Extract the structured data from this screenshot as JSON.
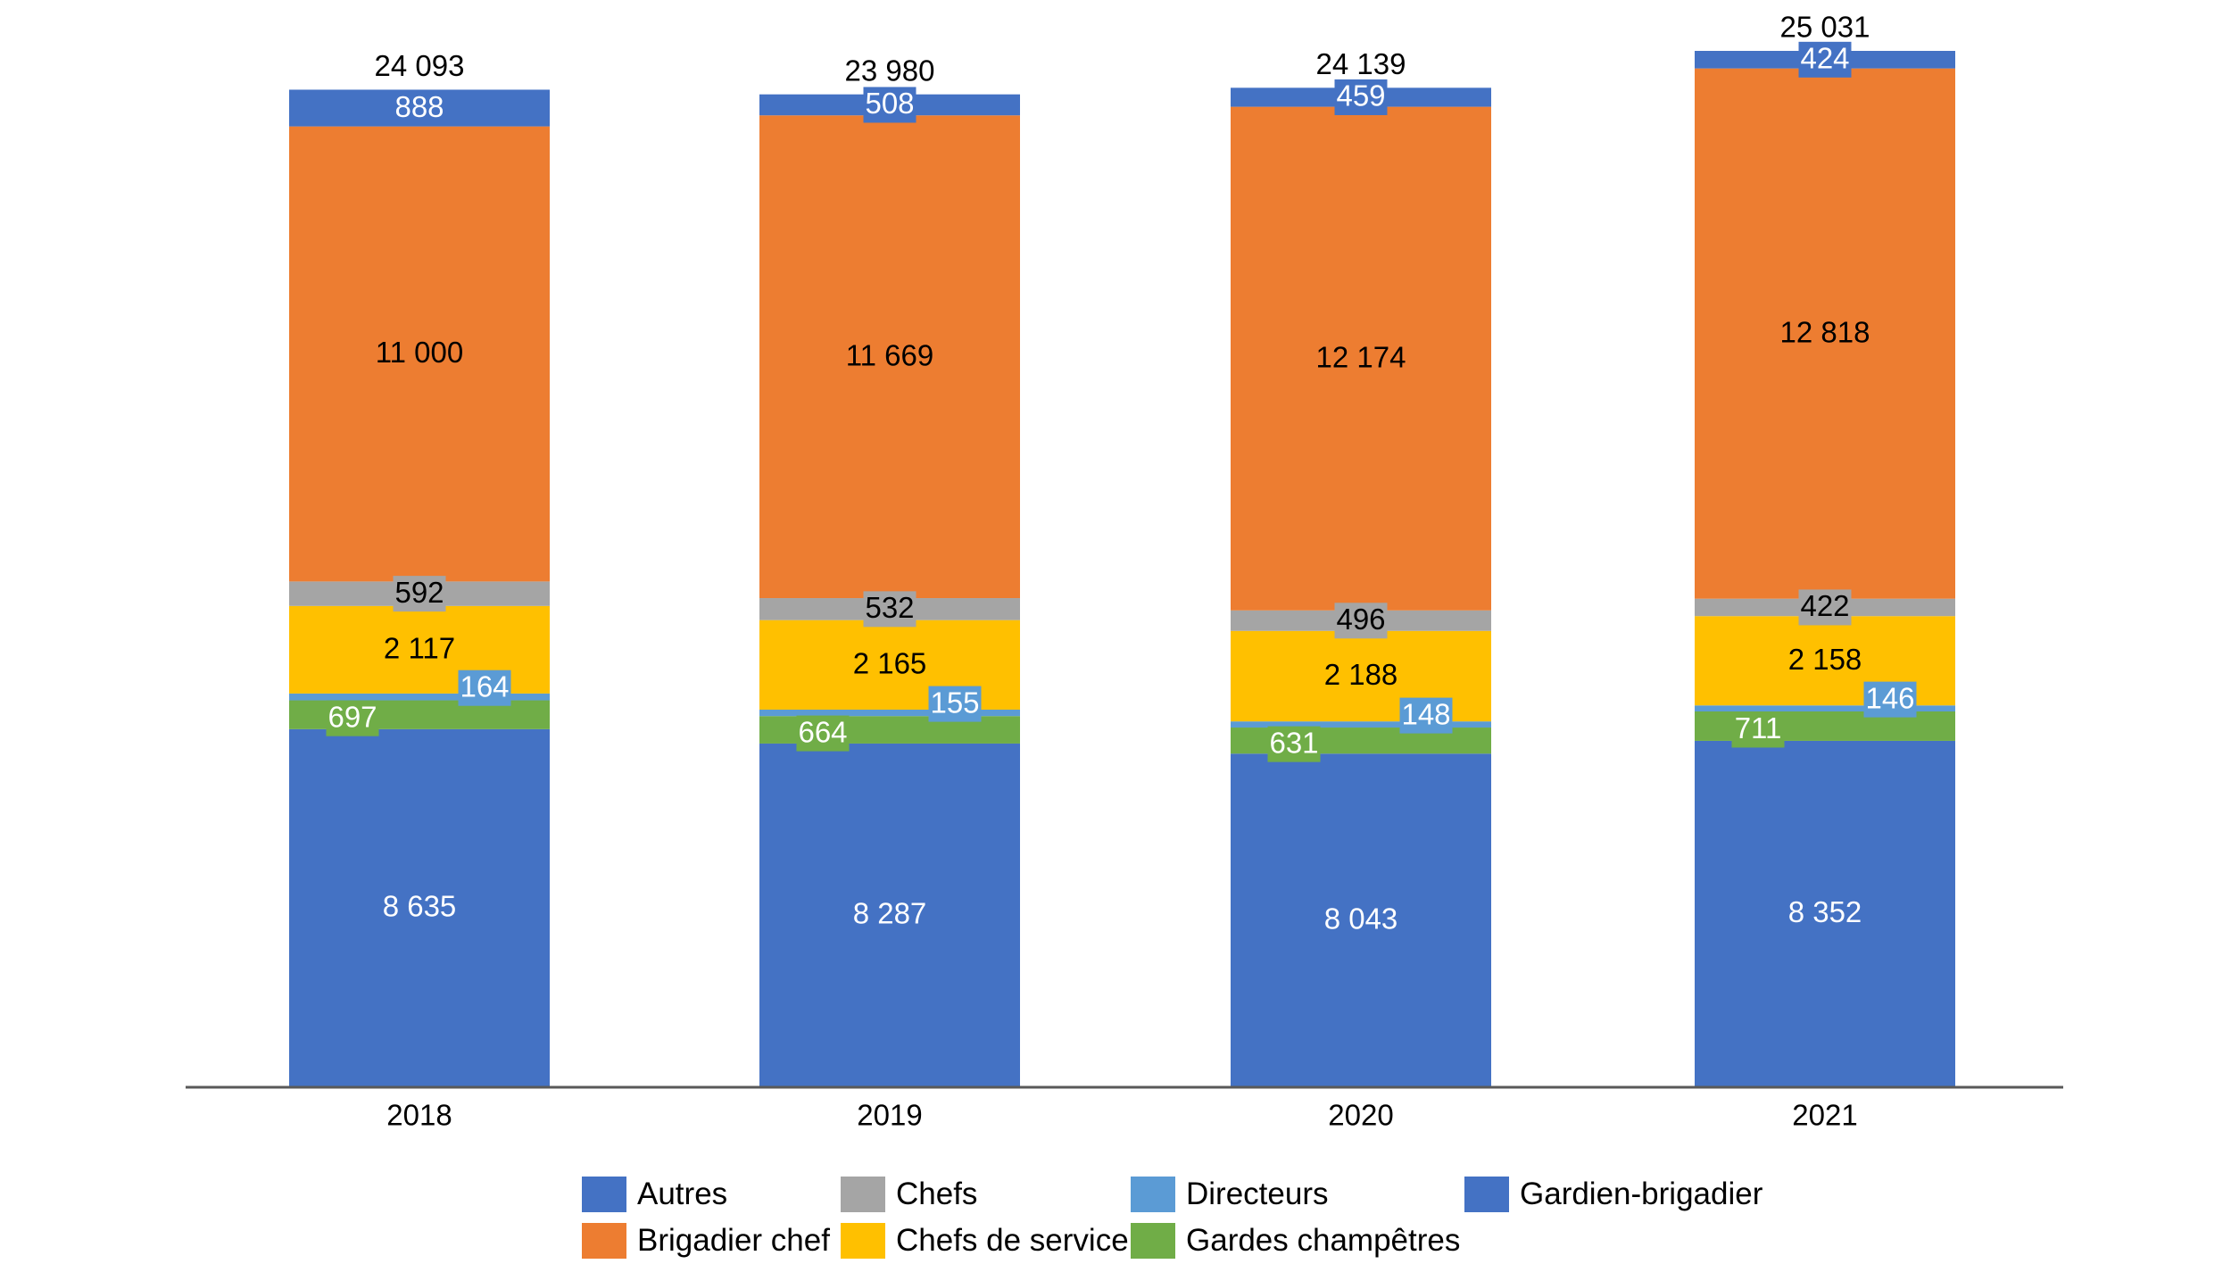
{
  "chart_data": {
    "type": "bar",
    "stacked": true,
    "title": "",
    "xlabel": "",
    "ylabel": "",
    "ylim": [
      0,
      25031
    ],
    "grid": false,
    "legend_position": "bottom",
    "categories": [
      "2018",
      "2019",
      "2020",
      "2021"
    ],
    "totals": [
      24093,
      23980,
      24139,
      25031
    ],
    "total_labels": [
      "24 093",
      "23 980",
      "24 139",
      "25 031"
    ],
    "series": [
      {
        "name": "Gardien-brigadier",
        "color": "#4472C4",
        "values": [
          8635,
          8287,
          8043,
          8352
        ],
        "labels": [
          "8 635",
          "8 287",
          "8 043",
          "8 352"
        ],
        "label_color": "#FFFFFF",
        "label_box": false,
        "label_pos": "center"
      },
      {
        "name": "Gardes champêtres",
        "color": "#70AD47",
        "values": [
          697,
          664,
          631,
          711
        ],
        "labels": [
          "697",
          "664",
          "631",
          "711"
        ],
        "label_color": "#FFFFFF",
        "label_box": true,
        "label_pos": "left"
      },
      {
        "name": "Directeurs",
        "color": "#5B9BD5",
        "values": [
          164,
          155,
          148,
          146
        ],
        "labels": [
          "164",
          "155",
          "148",
          "146"
        ],
        "label_color": "#FFFFFF",
        "label_box": true,
        "label_pos": "right"
      },
      {
        "name": "Chefs de service",
        "color": "#FFC000",
        "values": [
          2117,
          2165,
          2188,
          2158
        ],
        "labels": [
          "2 117",
          "2 165",
          "2 188",
          "2 158"
        ],
        "label_color": "#000000",
        "label_box": false,
        "label_pos": "center"
      },
      {
        "name": "Chefs",
        "color": "#A5A5A5",
        "values": [
          592,
          532,
          496,
          422
        ],
        "labels": [
          "592",
          "532",
          "496",
          "422"
        ],
        "label_color": "#000000",
        "label_box": true,
        "label_pos": "center"
      },
      {
        "name": "Brigadier chef",
        "color": "#ED7D31",
        "values": [
          11000,
          11669,
          12174,
          12818
        ],
        "labels": [
          "11 000",
          "11 669",
          "12 174",
          "12 818"
        ],
        "label_color": "#000000",
        "label_box": false,
        "label_pos": "center"
      },
      {
        "name": "Autres",
        "color": "#4472C4",
        "values": [
          888,
          508,
          459,
          424
        ],
        "labels": [
          "888",
          "508",
          "459",
          "424"
        ],
        "label_color": "#FFFFFF",
        "label_box": true,
        "label_pos": "center"
      }
    ]
  },
  "legend": {
    "rows": [
      [
        {
          "name": "Autres",
          "color": "#4472C4"
        },
        {
          "name": "Chefs",
          "color": "#A5A5A5"
        },
        {
          "name": "Directeurs",
          "color": "#5B9BD5"
        },
        {
          "name": "Gardien-brigadier",
          "color": "#4472C4"
        }
      ],
      [
        {
          "name": "Brigadier chef",
          "color": "#ED7D31"
        },
        {
          "name": "Chefs de service",
          "color": "#FFC000"
        },
        {
          "name": "Gardes champêtres",
          "color": "#70AD47"
        }
      ]
    ]
  },
  "colors": {
    "axis": "#595959",
    "text": "#000000"
  }
}
